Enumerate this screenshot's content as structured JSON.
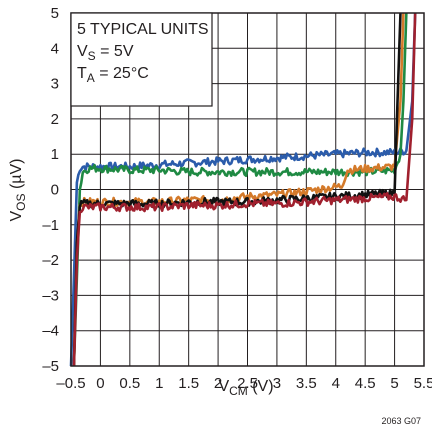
{
  "chart_data": {
    "type": "line",
    "xlabel": {
      "main": "V",
      "sub": "CM",
      "unit": " (V)"
    },
    "ylabel": {
      "main": "V",
      "sub": "OS",
      "unit": " (µV)"
    },
    "xlim": [
      -0.5,
      5.5
    ],
    "ylim": [
      -5,
      5
    ],
    "x_ticks": [
      "–0.5",
      "0",
      "0.5",
      "1",
      "1.5",
      "2",
      "2.5",
      "3",
      "3.5",
      "4",
      "4.5",
      "5",
      "5.5"
    ],
    "y_ticks": [
      "–5",
      "–4",
      "–3",
      "–2",
      "–1",
      "0",
      "1",
      "2",
      "3",
      "4",
      "5"
    ],
    "grid": true,
    "annotation": {
      "line1": "5 TYPICAL UNITS",
      "line2": {
        "main": "V",
        "sub": "S",
        "rest": " = 5V"
      },
      "line3": {
        "main": "T",
        "sub": "A",
        "rest": " = 25°C"
      }
    },
    "figure_id": "2063 G07",
    "series": [
      {
        "color": "#2b5cab",
        "x": [
          -0.5,
          -0.45,
          -0.4,
          -0.35,
          -0.3,
          -0.2,
          0,
          0.5,
          1,
          1.5,
          2,
          2.5,
          3,
          3.5,
          4,
          4.5,
          5,
          5.2,
          5.3,
          5.35
        ],
        "y": [
          -5,
          -2.5,
          0.2,
          0.6,
          0.65,
          0.65,
          0.65,
          0.65,
          0.7,
          0.75,
          0.8,
          0.85,
          0.9,
          0.95,
          1.0,
          1.05,
          1.05,
          1.1,
          2.5,
          5
        ]
      },
      {
        "color": "#1f8a43",
        "x": [
          -0.45,
          -0.35,
          -0.3,
          -0.2,
          0,
          0.5,
          1,
          1.5,
          2,
          2.5,
          3,
          3.5,
          4,
          4.5,
          5,
          5.1,
          5.15,
          5.2
        ],
        "y": [
          -5,
          0.0,
          0.5,
          0.6,
          0.6,
          0.55,
          0.55,
          0.5,
          0.5,
          0.5,
          0.5,
          0.5,
          0.5,
          0.5,
          0.55,
          1.0,
          2.5,
          5
        ]
      },
      {
        "color": "#d47a2a",
        "x": [
          -0.45,
          -0.4,
          -0.35,
          -0.3,
          0,
          0.5,
          1,
          1.5,
          2,
          2.5,
          3,
          3.5,
          3.9,
          4.1,
          4.2,
          4.6,
          5.0,
          5.1,
          5.15
        ],
        "y": [
          -5,
          -1.5,
          -0.45,
          -0.35,
          -0.35,
          -0.35,
          -0.35,
          -0.3,
          -0.3,
          -0.2,
          -0.15,
          -0.05,
          0.05,
          0.1,
          0.55,
          0.6,
          0.65,
          2.5,
          5
        ]
      },
      {
        "color": "#111111",
        "x": [
          -0.45,
          -0.4,
          -0.35,
          -0.3,
          0,
          0.5,
          1,
          1.5,
          2,
          2.5,
          3,
          3.5,
          4,
          4.5,
          5,
          5.05,
          5.1
        ],
        "y": [
          -5,
          -1.5,
          -0.45,
          -0.4,
          -0.4,
          -0.4,
          -0.4,
          -0.35,
          -0.35,
          -0.35,
          -0.3,
          -0.25,
          -0.2,
          -0.15,
          -0.1,
          2.5,
          5
        ]
      },
      {
        "color": "#a0202e",
        "x": [
          -0.45,
          -0.4,
          -0.35,
          -0.3,
          0,
          0.5,
          1,
          1.5,
          2,
          2.5,
          3,
          3.5,
          4,
          4.5,
          5,
          5.2,
          5.3,
          5.35
        ],
        "y": [
          -5,
          -2.0,
          -0.55,
          -0.5,
          -0.5,
          -0.5,
          -0.5,
          -0.45,
          -0.45,
          -0.4,
          -0.4,
          -0.35,
          -0.3,
          -0.25,
          -0.2,
          -0.3,
          2.0,
          5
        ]
      }
    ]
  }
}
